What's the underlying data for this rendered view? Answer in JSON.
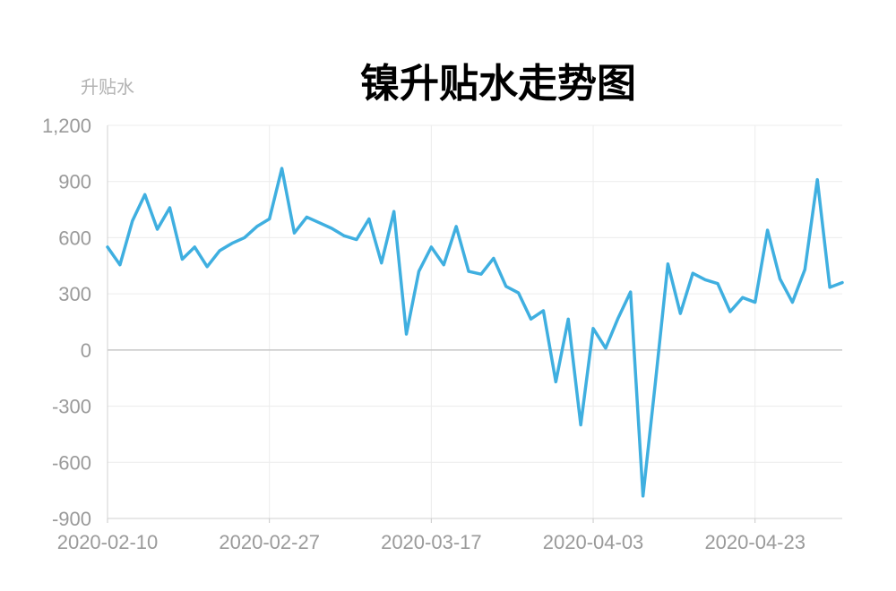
{
  "chart_data": {
    "type": "line",
    "title": "镍升贴水走势图",
    "ylabel": "升贴水",
    "xlabel": "",
    "ylim": [
      -900,
      1200
    ],
    "y_ticks": [
      "1,200",
      "900",
      "600",
      "300",
      "0",
      "-300",
      "-600",
      "-900"
    ],
    "x_ticks": [
      "2020-02-10",
      "2020-02-27",
      "2020-03-17",
      "2020-04-03",
      "2020-04-23"
    ],
    "grid": true,
    "line_color": "#3fafe0",
    "series": [
      {
        "values": [
          550,
          455,
          690,
          830,
          645,
          760,
          485,
          550,
          445,
          530,
          570,
          600,
          660,
          700,
          970,
          625,
          710,
          680,
          650,
          610,
          590,
          700,
          465,
          740,
          85,
          420,
          550,
          455,
          660,
          420,
          405,
          490,
          340,
          305,
          165,
          210,
          -170,
          165,
          -400,
          115,
          10,
          170,
          310,
          -780,
          -170,
          460,
          195,
          410,
          375,
          355,
          205,
          280,
          255,
          640,
          380,
          255,
          430,
          910,
          335,
          360
        ]
      }
    ]
  }
}
